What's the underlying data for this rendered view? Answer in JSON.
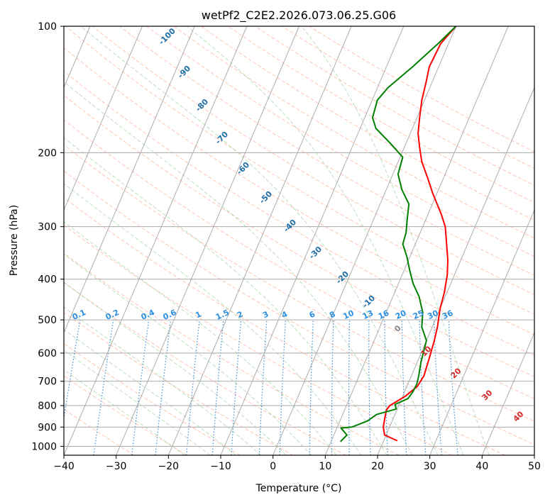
{
  "chart_data": {
    "type": "line",
    "title": "wetPf2_C2E2.2026.073.06.25.G06",
    "xlabel": "Temperature (°C)",
    "ylabel": "Pressure (hPa)",
    "xlim": [
      -40,
      50
    ],
    "ylim": [
      1050,
      100
    ],
    "y_scale": "log",
    "x_ticks": [
      -40,
      -30,
      -20,
      -10,
      0,
      10,
      20,
      30,
      40,
      50
    ],
    "y_ticks": [
      100,
      200,
      300,
      400,
      500,
      600,
      700,
      800,
      900,
      1000
    ],
    "grid": true,
    "series": [
      {
        "color": "#ff0000",
        "points": [
          [
            22.6,
            970
          ],
          [
            19.7,
            940
          ],
          [
            18.8,
            900
          ],
          [
            18.4,
            860
          ],
          [
            18.0,
            820
          ],
          [
            18.3,
            800
          ],
          [
            20.5,
            760
          ],
          [
            22.0,
            720
          ],
          [
            22.4,
            680
          ],
          [
            22.0,
            620
          ],
          [
            21.5,
            560
          ],
          [
            21.0,
            520
          ],
          [
            20.0,
            470
          ],
          [
            19.5,
            430
          ],
          [
            18.6,
            390
          ],
          [
            17.5,
            360
          ],
          [
            16.5,
            340
          ],
          [
            14.3,
            300
          ],
          [
            12.5,
            280
          ],
          [
            9.2,
            250
          ],
          [
            7.0,
            230
          ],
          [
            4.5,
            210
          ],
          [
            3.0,
            195
          ],
          [
            1.5,
            180
          ],
          [
            0.5,
            165
          ],
          [
            -0.5,
            150
          ],
          [
            -1.2,
            135
          ],
          [
            -1.8,
            125
          ],
          [
            -1.5,
            110
          ],
          [
            0.0,
            100
          ]
        ]
      },
      {
        "color": "#008000",
        "points": [
          [
            11.8,
            975
          ],
          [
            12.5,
            940
          ],
          [
            10.8,
            905
          ],
          [
            12.8,
            900
          ],
          [
            15.3,
            870
          ],
          [
            16.5,
            840
          ],
          [
            19.8,
            815
          ],
          [
            19.2,
            795
          ],
          [
            21.2,
            770
          ],
          [
            21.6,
            740
          ],
          [
            21.7,
            710
          ],
          [
            21.4,
            680
          ],
          [
            20.7,
            630
          ],
          [
            20.0,
            560
          ],
          [
            18.0,
            520
          ],
          [
            17.0,
            480
          ],
          [
            15.0,
            440
          ],
          [
            12.8,
            410
          ],
          [
            11.0,
            380
          ],
          [
            9.5,
            355
          ],
          [
            7.6,
            330
          ],
          [
            7.3,
            310
          ],
          [
            6.5,
            290
          ],
          [
            5.5,
            265
          ],
          [
            3.0,
            245
          ],
          [
            1.0,
            225
          ],
          [
            0.5,
            205
          ],
          [
            -3.0,
            190
          ],
          [
            -7.0,
            175
          ],
          [
            -8.5,
            165
          ],
          [
            -9.0,
            150
          ],
          [
            -8.0,
            140
          ],
          [
            -5.0,
            125
          ],
          [
            -2.0,
            110
          ],
          [
            0.0,
            100
          ]
        ]
      }
    ],
    "dry_adiabat_labels": [
      "-100",
      "-90",
      "-80",
      "-70",
      "-60",
      "-50",
      "-40",
      "-30",
      "-20",
      "-10"
    ],
    "moist_adiabat_label": "0",
    "mixing_ratio_labels": [
      "0.1",
      "0.2",
      "0.4",
      "0.6",
      "1",
      "1.5",
      "2",
      "3",
      "4",
      "6",
      "8",
      "10",
      "13",
      "16",
      "20",
      "25",
      "30",
      "36"
    ],
    "isotherm_labels": [
      "10",
      "20",
      "30",
      "40"
    ]
  }
}
